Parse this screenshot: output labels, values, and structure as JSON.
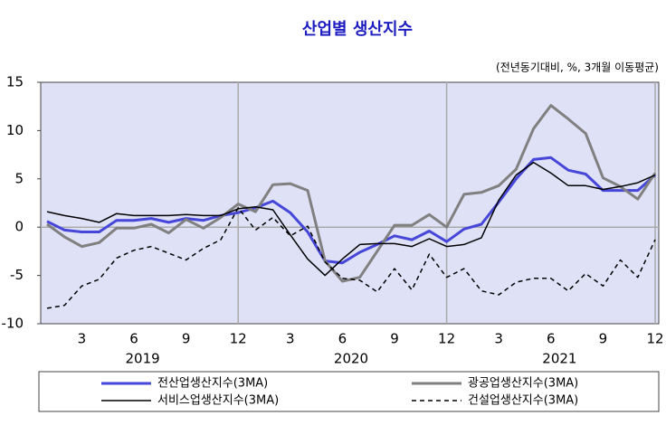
{
  "chart_data": {
    "type": "line",
    "title": "산업별 생산지수",
    "subtitle": "(전년동기대비,  %, 3개월 이동평균)",
    "categories": [
      null,
      null,
      "3",
      null,
      null,
      "6",
      null,
      null,
      "9",
      null,
      null,
      "12",
      null,
      null,
      "3",
      null,
      null,
      "6",
      null,
      null,
      "9",
      null,
      null,
      "12",
      null,
      null,
      "3",
      null,
      null,
      "6",
      null,
      null,
      "9",
      null,
      null,
      "12"
    ],
    "year_labels": [
      "2019",
      "2020",
      "2021"
    ],
    "ylim": [
      -10,
      15
    ],
    "yticks": [
      -10,
      -5,
      0,
      5,
      10,
      15
    ],
    "grid": false,
    "series": [
      {
        "name": "전산업생산지수(3MA)",
        "color": "#4646d8",
        "linestyle": "solid",
        "linewidth": 3,
        "values": [
          0.6,
          -0.3,
          -0.5,
          -0.5,
          0.7,
          0.7,
          0.9,
          0.5,
          0.9,
          0.7,
          1.2,
          1.5,
          2.0,
          2.7,
          1.5,
          -0.5,
          -3.5,
          -3.7,
          -2.6,
          -1.8,
          -0.9,
          -1.3,
          -0.4,
          -1.5,
          -0.2,
          0.3,
          2.6,
          5.0,
          7.0,
          7.2,
          5.9,
          5.5,
          3.8,
          3.8,
          3.8,
          5.4
        ]
      },
      {
        "name": "광공업생산지수(3MA)",
        "color": "#808080",
        "linestyle": "solid",
        "linewidth": 3,
        "values": [
          0.3,
          -1.0,
          -2.0,
          -1.6,
          -0.1,
          -0.1,
          0.3,
          -0.6,
          0.8,
          -0.1,
          1.0,
          2.4,
          1.6,
          4.4,
          4.5,
          3.8,
          -3.5,
          -5.6,
          -5.2,
          -2.5,
          0.2,
          0.2,
          1.3,
          0.0,
          3.4,
          3.6,
          4.3,
          6.0,
          10.2,
          12.6,
          11.2,
          9.7,
          5.1,
          4.2,
          2.9,
          5.6
        ]
      },
      {
        "name": "서비스업생산지수(3MA)",
        "color": "#000000",
        "linestyle": "solid",
        "linewidth": 1.5,
        "values": [
          1.6,
          1.2,
          0.9,
          0.5,
          1.4,
          1.2,
          1.2,
          1.2,
          1.3,
          1.2,
          1.2,
          1.9,
          2.1,
          1.8,
          -0.8,
          -3.3,
          -5.0,
          -3.3,
          -1.8,
          -1.7,
          -1.7,
          -2.0,
          -1.2,
          -2.0,
          -1.8,
          -1.1,
          2.8,
          5.4,
          6.7,
          5.6,
          4.3,
          4.3,
          3.9,
          4.2,
          4.6,
          5.4
        ]
      },
      {
        "name": "건설업생산지수(3MA)",
        "color": "#000000",
        "linestyle": "dashed",
        "linewidth": 1.5,
        "values": [
          -8.4,
          -8.1,
          -6.1,
          -5.4,
          -3.2,
          -2.4,
          -2.0,
          -2.7,
          -3.4,
          -2.2,
          -1.3,
          2.0,
          -0.3,
          1.0,
          -0.9,
          0.1,
          -3.6,
          -5.3,
          -5.5,
          -6.7,
          -4.3,
          -6.5,
          -2.8,
          -5.2,
          -4.3,
          -6.6,
          -7.0,
          -5.7,
          -5.3,
          -5.3,
          -6.6,
          -4.8,
          -6.1,
          -3.4,
          -5.2,
          -1.3
        ]
      }
    ]
  }
}
